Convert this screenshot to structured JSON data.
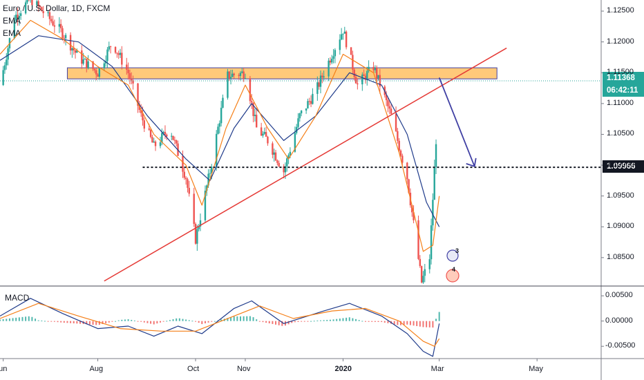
{
  "legend": {
    "symbol": "Euro / U.S. Dollar, 1D, FXCM",
    "ema1": "EMA",
    "ema2": "EMA"
  },
  "macd_label": "MACD",
  "current_price": "1.11368",
  "countdown": "06:42:11",
  "target_price": "1.09966",
  "colors": {
    "up": "#26a69a",
    "down": "#ef5350",
    "ema_fast": "#f57f17",
    "ema_slow": "#1e3a8a",
    "trendline": "#e53935",
    "zone": "#ffb74d",
    "arrow": "#3f3fa3",
    "current_price_tag": "#26a69a",
    "target_tag": "#131722"
  },
  "badges": [
    "3",
    "4"
  ],
  "chart_data": {
    "type": "candlestick",
    "title": "Euro / U.S. Dollar, 1D, FXCM",
    "price_axis": {
      "ylim": [
        1.0805,
        1.1268
      ],
      "ticks": [
        "1.12500",
        "1.12000",
        "1.11500",
        "1.11000",
        "1.10500",
        "1.10000",
        "1.09500",
        "1.09000",
        "1.08500"
      ]
    },
    "macd_axis": {
      "ylim": [
        -0.0073,
        0.0068
      ],
      "ticks": [
        "0.00500",
        "0.00000",
        "-0.00500"
      ]
    },
    "x_ticks": [
      "Jun",
      "Aug",
      "Oct",
      "Nov",
      "2020",
      "Mar",
      "May"
    ],
    "x_tick_dates": [
      "2019-06-03",
      "2019-08-01",
      "2019-10-01",
      "2019-11-01",
      "2020-01-01",
      "2020-03-01",
      "2020-05-01"
    ],
    "x_range": [
      "2019-06-01",
      "2020-06-10"
    ],
    "resistance_zone": {
      "y_top": 1.1158,
      "y_bottom": 1.114,
      "x_start": "2019-07-13",
      "x_end": "2020-04-06"
    },
    "support_line": {
      "y": 1.09966,
      "x_start": "2019-08-29",
      "x_end": "2020-04-28"
    },
    "trendline": {
      "p1": [
        "2019-08-05",
        1.0812
      ],
      "p2": [
        "2020-04-12",
        1.119
      ]
    },
    "projection_arrow": {
      "from": [
        "2020-03-01",
        1.1142
      ],
      "to": [
        "2020-03-23",
        1.0998
      ]
    },
    "current_price": 1.11368,
    "close_path": [
      [
        "2019-06-01",
        1.113
      ],
      [
        "2019-06-10",
        1.124
      ],
      [
        "2019-06-20",
        1.127
      ],
      [
        "2019-07-01",
        1.124
      ],
      [
        "2019-07-10",
        1.1215
      ],
      [
        "2019-07-20",
        1.1175
      ],
      [
        "2019-08-01",
        1.115
      ],
      [
        "2019-08-10",
        1.12
      ],
      [
        "2019-08-20",
        1.115
      ],
      [
        "2019-08-28",
        1.108
      ],
      [
        "2019-09-05",
        1.103
      ],
      [
        "2019-09-15",
        1.106
      ],
      [
        "2019-09-25",
        1.098
      ],
      [
        "2019-10-01",
        1.088
      ],
      [
        "2019-10-10",
        1.099
      ],
      [
        "2019-10-21",
        1.1145
      ],
      [
        "2019-11-01",
        1.115
      ],
      [
        "2019-11-08",
        1.106
      ],
      [
        "2019-11-15",
        1.104
      ],
      [
        "2019-11-25",
        1.099
      ],
      [
        "2019-12-05",
        1.108
      ],
      [
        "2019-12-15",
        1.112
      ],
      [
        "2019-12-25",
        1.118
      ],
      [
        "2020-01-01",
        1.122
      ],
      [
        "2020-01-10",
        1.113
      ],
      [
        "2020-01-20",
        1.116
      ],
      [
        "2020-01-31",
        1.108
      ],
      [
        "2020-02-10",
        1.098
      ],
      [
        "2020-02-19",
        1.081
      ],
      [
        "2020-02-24",
        1.085
      ],
      [
        "2020-03-01",
        1.1137
      ]
    ],
    "ema_fast_path": [
      [
        "2019-06-01",
        1.118
      ],
      [
        "2019-06-20",
        1.1235
      ],
      [
        "2019-07-10",
        1.1205
      ],
      [
        "2019-08-01",
        1.116
      ],
      [
        "2019-08-20",
        1.113
      ],
      [
        "2019-09-05",
        1.105
      ],
      [
        "2019-09-25",
        1.1
      ],
      [
        "2019-10-05",
        1.0935
      ],
      [
        "2019-10-20",
        1.106
      ],
      [
        "2019-11-01",
        1.113
      ],
      [
        "2019-11-15",
        1.106
      ],
      [
        "2019-11-28",
        1.101
      ],
      [
        "2019-12-15",
        1.108
      ],
      [
        "2020-01-01",
        1.118
      ],
      [
        "2020-01-20",
        1.115
      ],
      [
        "2020-02-05",
        1.102
      ],
      [
        "2020-02-20",
        1.086
      ],
      [
        "2020-02-26",
        1.087
      ],
      [
        "2020-03-01",
        1.095
      ]
    ],
    "ema_slow_path": [
      [
        "2019-06-01",
        1.117
      ],
      [
        "2019-06-25",
        1.121
      ],
      [
        "2019-07-20",
        1.12
      ],
      [
        "2019-08-10",
        1.116
      ],
      [
        "2019-09-01",
        1.108
      ],
      [
        "2019-09-25",
        1.101
      ],
      [
        "2019-10-10",
        1.0975
      ],
      [
        "2019-10-25",
        1.106
      ],
      [
        "2019-11-05",
        1.11
      ],
      [
        "2019-11-25",
        1.104
      ],
      [
        "2019-12-15",
        1.108
      ],
      [
        "2020-01-05",
        1.115
      ],
      [
        "2020-01-25",
        1.113
      ],
      [
        "2020-02-10",
        1.105
      ],
      [
        "2020-02-22",
        1.094
      ],
      [
        "2020-03-01",
        1.09
      ]
    ],
    "macd_path": [
      [
        "2019-06-01",
        0.001
      ],
      [
        "2019-06-20",
        0.0045
      ],
      [
        "2019-07-10",
        0.0015
      ],
      [
        "2019-08-01",
        -0.0015
      ],
      [
        "2019-08-20",
        -0.001
      ],
      [
        "2019-09-05",
        -0.003
      ],
      [
        "2019-09-20",
        -0.001
      ],
      [
        "2019-10-05",
        -0.0025
      ],
      [
        "2019-10-25",
        0.0025
      ],
      [
        "2019-11-05",
        0.004
      ],
      [
        "2019-11-25",
        -0.0005
      ],
      [
        "2019-12-20",
        0.002
      ],
      [
        "2020-01-05",
        0.0035
      ],
      [
        "2020-01-25",
        0.001
      ],
      [
        "2020-02-10",
        -0.0025
      ],
      [
        "2020-02-20",
        -0.006
      ],
      [
        "2020-02-26",
        -0.007
      ],
      [
        "2020-03-01",
        -0.0005
      ]
    ],
    "signal_path": [
      [
        "2019-06-01",
        0.0005
      ],
      [
        "2019-06-25",
        0.0035
      ],
      [
        "2019-07-20",
        0.001
      ],
      [
        "2019-08-15",
        -0.0015
      ],
      [
        "2019-09-10",
        -0.002
      ],
      [
        "2019-10-01",
        -0.002
      ],
      [
        "2019-10-25",
        0.001
      ],
      [
        "2019-11-10",
        0.003
      ],
      [
        "2019-12-01",
        0.0005
      ],
      [
        "2019-12-25",
        0.002
      ],
      [
        "2020-01-15",
        0.0025
      ],
      [
        "2020-02-05",
        0.0
      ],
      [
        "2020-02-20",
        -0.004
      ],
      [
        "2020-02-27",
        -0.005
      ],
      [
        "2020-03-01",
        -0.0035
      ]
    ]
  }
}
